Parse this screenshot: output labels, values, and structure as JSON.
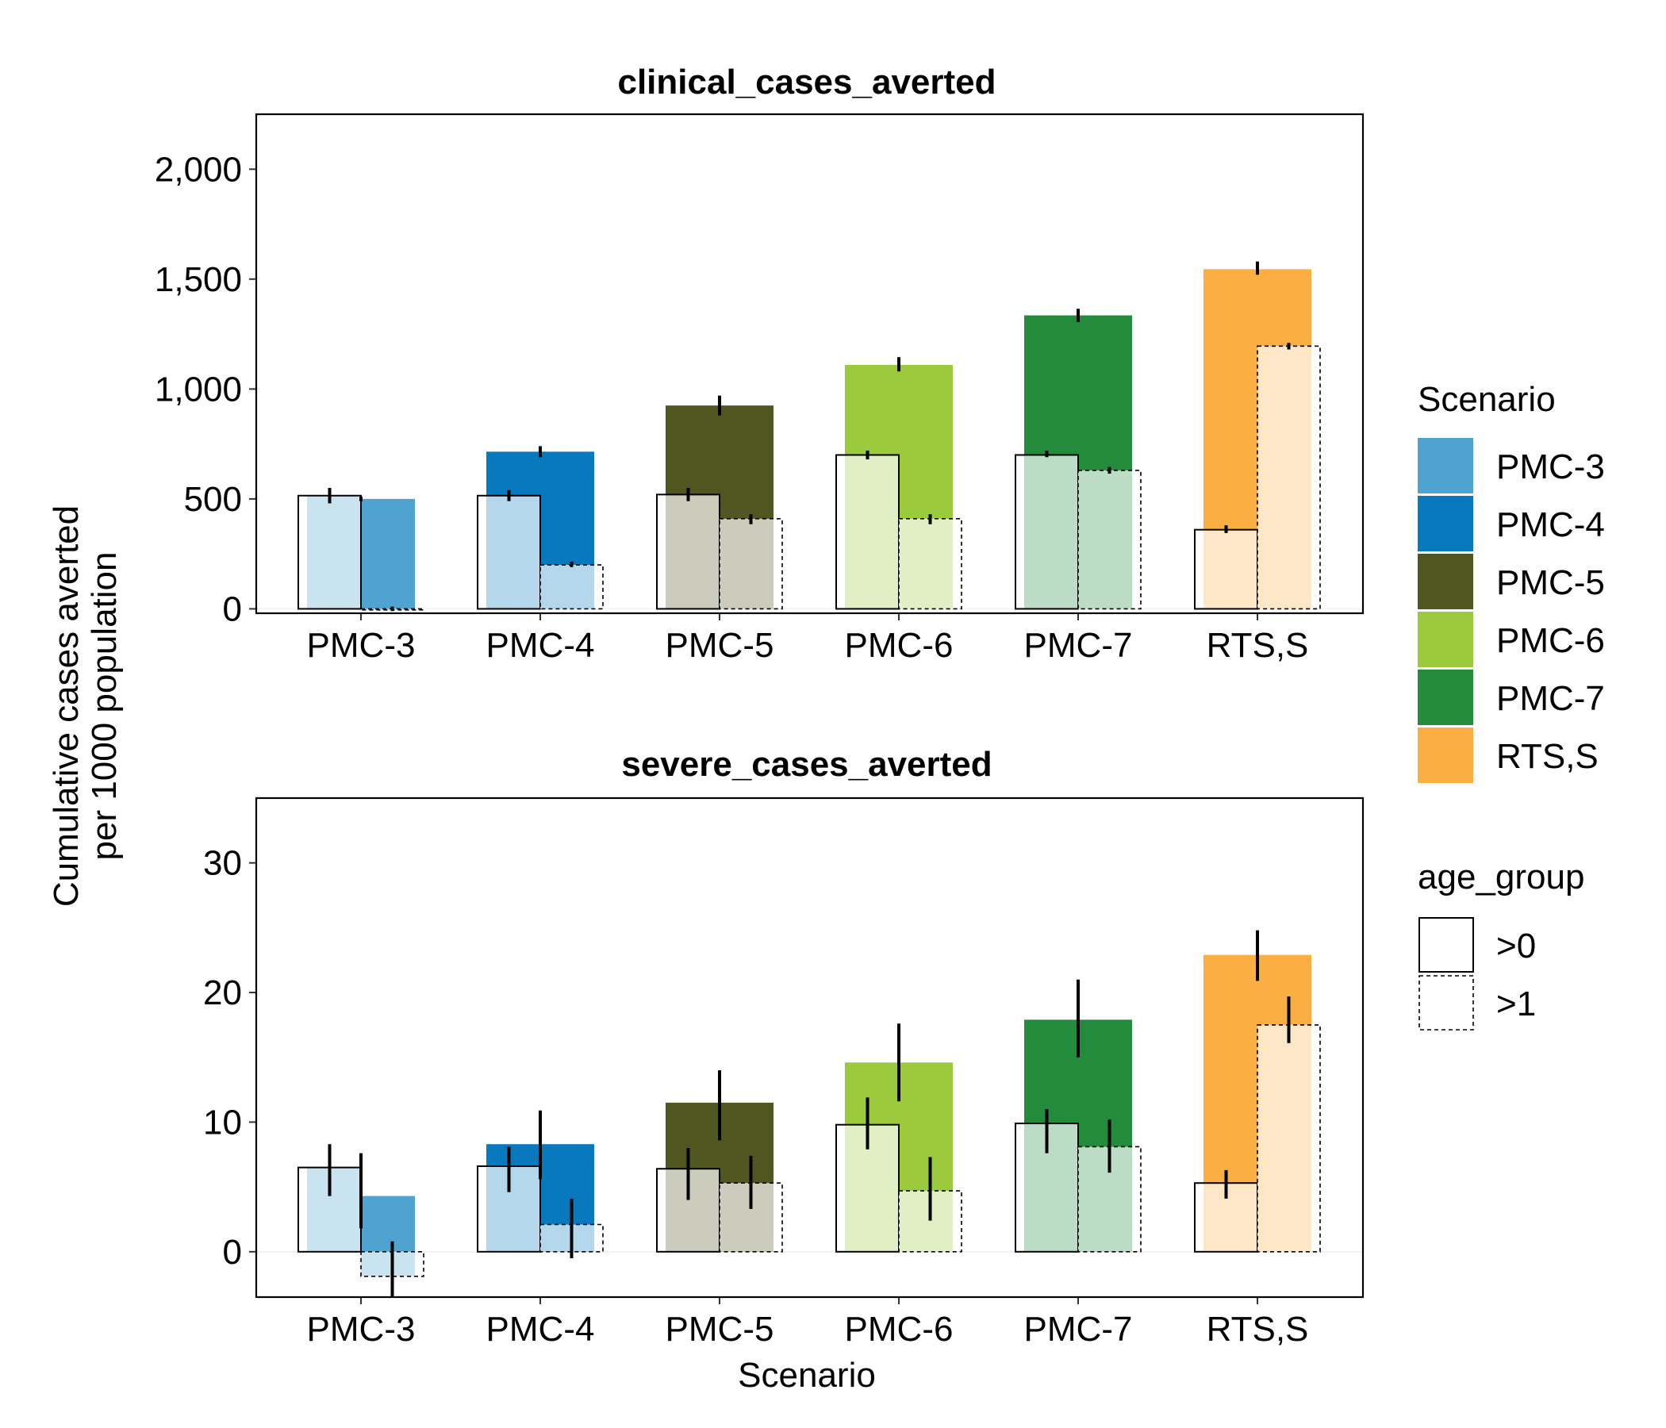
{
  "y_axis_title_line1": "Cumulative cases averted",
  "y_axis_title_line2": "per 1000 population",
  "x_axis_title": "Scenario",
  "legend_scenario": {
    "title": "Scenario",
    "items": [
      {
        "label": "PMC-3",
        "color": "#4FA3D1"
      },
      {
        "label": "PMC-4",
        "color": "#0879BD"
      },
      {
        "label": "PMC-5",
        "color": "#505620"
      },
      {
        "label": "PMC-6",
        "color": "#9BCA3C"
      },
      {
        "label": "PMC-7",
        "color": "#238B3C"
      },
      {
        "label": "RTS,S",
        "color": "#FBAE42"
      }
    ]
  },
  "legend_age": {
    "title": "age_group",
    "items": [
      {
        "label": ">0",
        "line": "solid"
      },
      {
        "label": ">1",
        "line": "dashed"
      }
    ]
  },
  "chart_data": [
    {
      "type": "bar",
      "title": "clinical_cases_averted",
      "categories": [
        "PMC-3",
        "PMC-4",
        "PMC-5",
        "PMC-6",
        "PMC-7",
        "RTS,S"
      ],
      "colors": [
        "#4FA3D1",
        "#0879BD",
        "#505620",
        "#9BCA3C",
        "#238B3C",
        "#FBAE42"
      ],
      "ylim": [
        -20,
        2250
      ],
      "yticks": [
        0,
        500,
        1000,
        1500,
        2000
      ],
      "ytick_labels": [
        "0",
        "500",
        "1,000",
        "1,500",
        "2,000"
      ],
      "filled_bars": [
        500,
        715,
        925,
        1110,
        1335,
        1545
      ],
      "filled_errors": [
        [
          490,
          510
        ],
        [
          690,
          740
        ],
        [
          880,
          970
        ],
        [
          1080,
          1145
        ],
        [
          1305,
          1365
        ],
        [
          1520,
          1580
        ]
      ],
      "series": [
        {
          "name": ">0",
          "values": [
            515,
            515,
            520,
            700,
            700,
            360
          ],
          "errors": [
            [
              480,
              550
            ],
            [
              490,
              540
            ],
            [
              490,
              550
            ],
            [
              680,
              720
            ],
            [
              690,
              720
            ],
            [
              345,
              380
            ]
          ]
        },
        {
          "name": ">1",
          "values": [
            -5,
            200,
            410,
            410,
            630,
            1195
          ],
          "errors": [
            [
              -10,
              10
            ],
            [
              190,
              215
            ],
            [
              385,
              430
            ],
            [
              385,
              430
            ],
            [
              615,
              645
            ],
            [
              1180,
              1210
            ]
          ]
        }
      ]
    },
    {
      "type": "bar",
      "title": "severe_cases_averted",
      "categories": [
        "PMC-3",
        "PMC-4",
        "PMC-5",
        "PMC-6",
        "PMC-7",
        "RTS,S"
      ],
      "colors": [
        "#4FA3D1",
        "#0879BD",
        "#505620",
        "#9BCA3C",
        "#238B3C",
        "#FBAE42"
      ],
      "ylim": [
        -3.5,
        35
      ],
      "yticks": [
        0,
        10,
        20,
        30
      ],
      "ytick_labels": [
        "0",
        "10",
        "20",
        "30"
      ],
      "filled_bars": [
        4.3,
        8.3,
        11.5,
        14.6,
        17.9,
        22.9
      ],
      "filled_errors": [
        [
          1.8,
          7.6
        ],
        [
          5.6,
          10.9
        ],
        [
          8.6,
          14
        ],
        [
          11.6,
          17.6
        ],
        [
          15,
          21
        ],
        [
          20.9,
          24.8
        ]
      ],
      "series": [
        {
          "name": ">0",
          "values": [
            6.5,
            6.6,
            6.4,
            9.8,
            9.9,
            5.3
          ],
          "errors": [
            [
              4.3,
              8.3
            ],
            [
              4.6,
              8.1
            ],
            [
              4,
              8
            ],
            [
              7.9,
              11.9
            ],
            [
              7.6,
              11
            ],
            [
              4.1,
              6.3
            ]
          ]
        },
        {
          "name": ">1",
          "values": [
            -1.9,
            2.1,
            5.3,
            4.7,
            8.1,
            17.5
          ],
          "errors": [
            [
              -3.5,
              0.8
            ],
            [
              -0.5,
              4.1
            ],
            [
              3.3,
              7.4
            ],
            [
              2.4,
              7.3
            ],
            [
              6.1,
              10.2
            ],
            [
              16.1,
              19.7
            ]
          ]
        }
      ]
    }
  ]
}
